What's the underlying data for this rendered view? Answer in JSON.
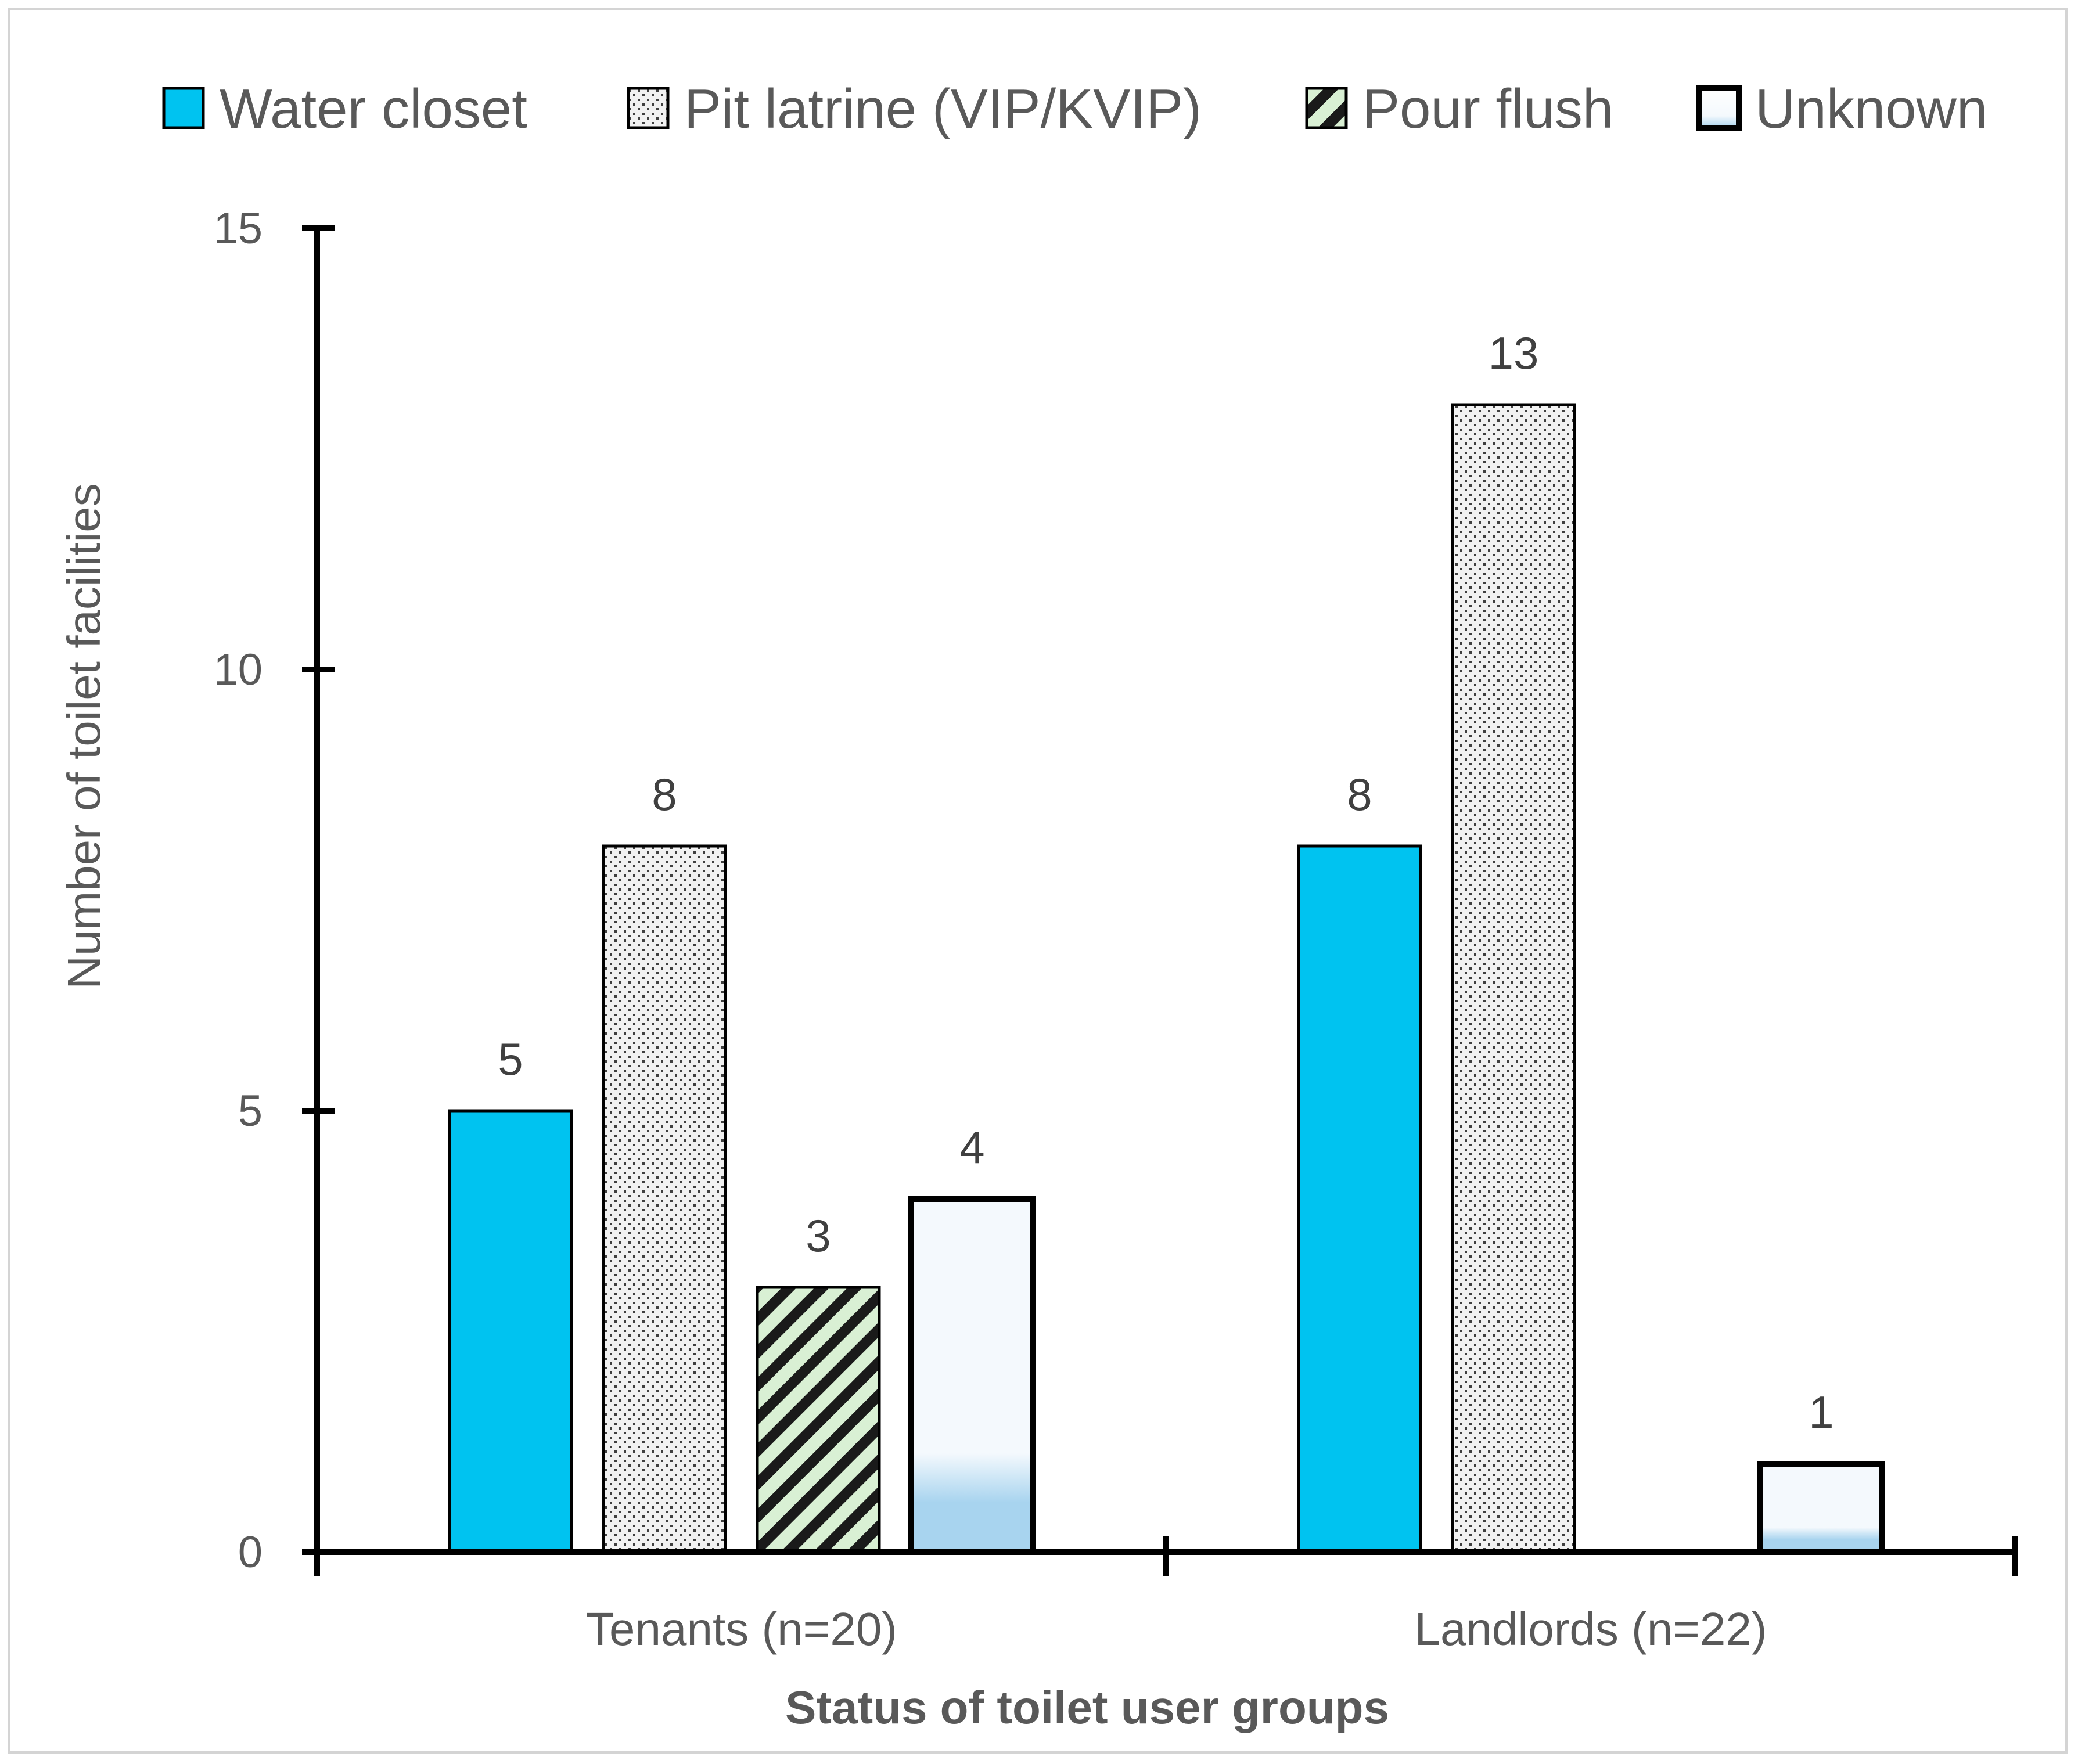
{
  "chart_data": {
    "type": "bar",
    "categories": [
      "Tenants (n=20)",
      "Landlords (n=22)"
    ],
    "series": [
      {
        "name": "Water closet",
        "values": [
          5,
          8
        ],
        "color": "#00c3f0",
        "pattern": "solid"
      },
      {
        "name": "Pit latrine (VIP/KVIP)",
        "values": [
          8,
          13
        ],
        "color": "#f2f2f2",
        "pattern": "dots"
      },
      {
        "name": "Pour flush",
        "values": [
          3,
          null
        ],
        "color": "#d9f0d4",
        "pattern": "hatch"
      },
      {
        "name": "Unknown",
        "values": [
          4,
          1
        ],
        "color": "#f4f9fd",
        "pattern": "gradient"
      }
    ],
    "title": "",
    "xlabel": "Status of toilet user groups",
    "ylabel": "Number of toilet facilities",
    "ylim": [
      0,
      15
    ],
    "yticks": [
      "0",
      "5",
      "10",
      "15"
    ],
    "grid": false,
    "legend": "top"
  }
}
